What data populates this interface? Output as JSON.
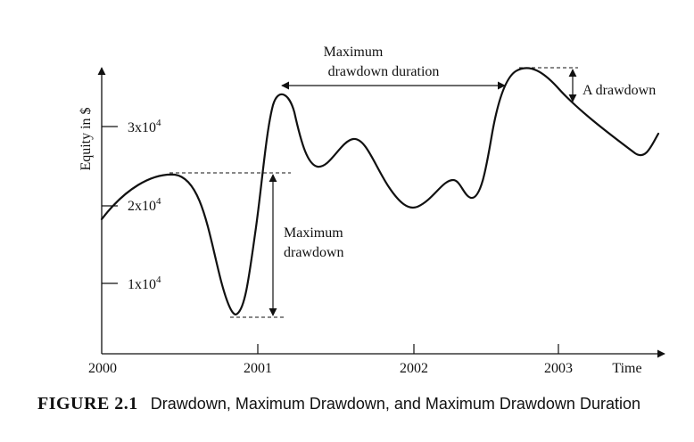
{
  "y_axis_label": "Equity in $",
  "y_ticks": [
    {
      "base": "1x10",
      "exp": "4"
    },
    {
      "base": "2x10",
      "exp": "4"
    },
    {
      "base": "3x10",
      "exp": "4"
    }
  ],
  "x_ticks": [
    "2000",
    "2001",
    "2002",
    "2003"
  ],
  "x_axis_label": "Time",
  "annotations": {
    "max_dd_duration_line1": "Maximum",
    "max_dd_duration_line2": "drawdown duration",
    "max_dd_line1": "Maximum",
    "max_dd_line2": "drawdown",
    "a_drawdown": "A drawdown"
  },
  "caption": {
    "label": "FIGURE 2.1",
    "text": "Drawdown, Maximum Drawdown, and Maximum Drawdown Duration"
  }
}
